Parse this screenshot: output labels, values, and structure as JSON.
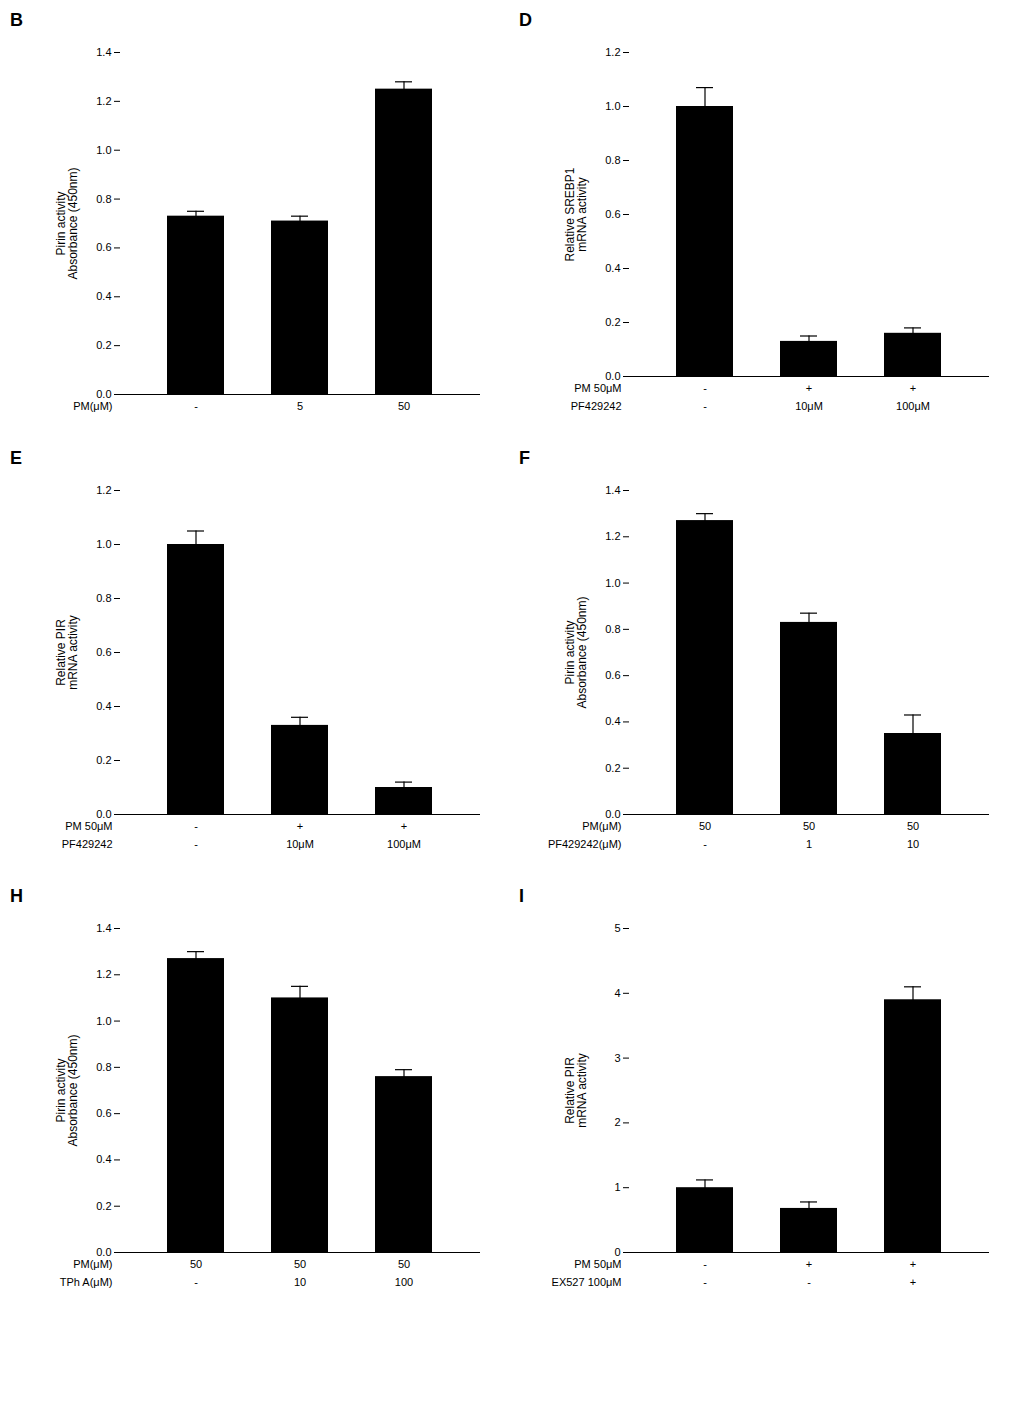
{
  "chart_data": [
    {
      "type": "bar",
      "title": "B",
      "ylabel": "Pirin activity\nAbsorbance (450nm)",
      "values": [
        0.73,
        0.71,
        1.25
      ],
      "errors": [
        0.02,
        0.02,
        0.03
      ],
      "x_rows": [
        {
          "label": "PM(μM)",
          "values": [
            "-",
            "5",
            "50"
          ]
        }
      ],
      "color": "#000000",
      "ylim": [
        0,
        1.4
      ],
      "yticks": [
        {
          "value": 0,
          "label": "0.0"
        },
        0.2,
        0.4,
        0.6,
        0.8,
        {
          "value": 1,
          "label": "1.0"
        },
        1.2,
        1.4
      ]
    },
    {
      "type": "bar",
      "title": "D",
      "ylabel": "Relative SREBP1\nmRNA activity",
      "values": [
        1.0,
        0.13,
        0.16
      ],
      "errors": [
        0.07,
        0.02,
        0.02
      ],
      "x_rows": [
        {
          "label": "PM 50μM",
          "values": [
            "-",
            "+",
            "+"
          ]
        },
        {
          "label": "PF429242",
          "values": [
            "-",
            "10μM",
            "100μM"
          ]
        }
      ],
      "color": "#000000",
      "ylim": [
        0,
        1.2
      ],
      "yticks": [
        {
          "value": 0,
          "label": "0.0"
        },
        0.2,
        0.4,
        0.6,
        0.8,
        {
          "value": 1,
          "label": "1.0"
        },
        1.2
      ]
    },
    {
      "type": "bar",
      "title": "E",
      "ylabel": "Relative PIR\nmRNA activity",
      "values": [
        1.0,
        0.33,
        0.1
      ],
      "errors": [
        0.05,
        0.03,
        0.02
      ],
      "x_rows": [
        {
          "label": "PM 50μM",
          "values": [
            "-",
            "+",
            "+"
          ]
        },
        {
          "label": "PF429242",
          "values": [
            "-",
            "10μM",
            "100μM"
          ]
        }
      ],
      "color": "#000000",
      "ylim": [
        0,
        1.2
      ],
      "yticks": [
        {
          "value": 0,
          "label": "0.0"
        },
        0.2,
        0.4,
        0.6,
        0.8,
        {
          "value": 1,
          "label": "1.0"
        },
        1.2
      ]
    },
    {
      "type": "bar",
      "title": "F",
      "ylabel": "Pirin activity\nAbsorbance (450nm)",
      "values": [
        1.27,
        0.83,
        0.35
      ],
      "errors": [
        0.03,
        0.04,
        0.08
      ],
      "x_rows": [
        {
          "label": "PM(μM)",
          "values": [
            "50",
            "50",
            "50"
          ]
        },
        {
          "label": "PF429242(μM)",
          "values": [
            "-",
            "1",
            "10"
          ]
        }
      ],
      "color": "#000000",
      "ylim": [
        0,
        1.4
      ],
      "yticks": [
        {
          "value": 0,
          "label": "0.0"
        },
        0.2,
        0.4,
        0.6,
        0.8,
        {
          "value": 1,
          "label": "1.0"
        },
        1.2,
        1.4
      ]
    },
    {
      "type": "bar",
      "title": "H",
      "ylabel": "Pirin activity\nAbsorbance (450nm)",
      "values": [
        1.27,
        1.1,
        0.76
      ],
      "errors": [
        0.03,
        0.05,
        0.03
      ],
      "x_rows": [
        {
          "label": "PM(μM)",
          "values": [
            "50",
            "50",
            "50"
          ]
        },
        {
          "label": "TPh A(μM)",
          "values": [
            "-",
            "10",
            "100"
          ]
        }
      ],
      "color": "#000000",
      "ylim": [
        0,
        1.4
      ],
      "yticks": [
        {
          "value": 0,
          "label": "0.0"
        },
        0.2,
        0.4,
        0.6,
        0.8,
        {
          "value": 1,
          "label": "1.0"
        },
        1.2,
        1.4
      ]
    },
    {
      "type": "bar",
      "title": "I",
      "ylabel": "Relative PIR\nmRNA activity",
      "values": [
        1.0,
        0.68,
        3.9
      ],
      "errors": [
        0.12,
        0.1,
        0.2
      ],
      "x_rows": [
        {
          "label": "PM 50μM",
          "values": [
            "-",
            "+",
            "+"
          ]
        },
        {
          "label": "EX527 100μM",
          "values": [
            "-",
            "-",
            "+"
          ]
        }
      ],
      "color": "#000000",
      "ylim": [
        0,
        5
      ],
      "yticks": [
        0,
        1,
        2,
        3,
        4,
        5
      ]
    }
  ]
}
